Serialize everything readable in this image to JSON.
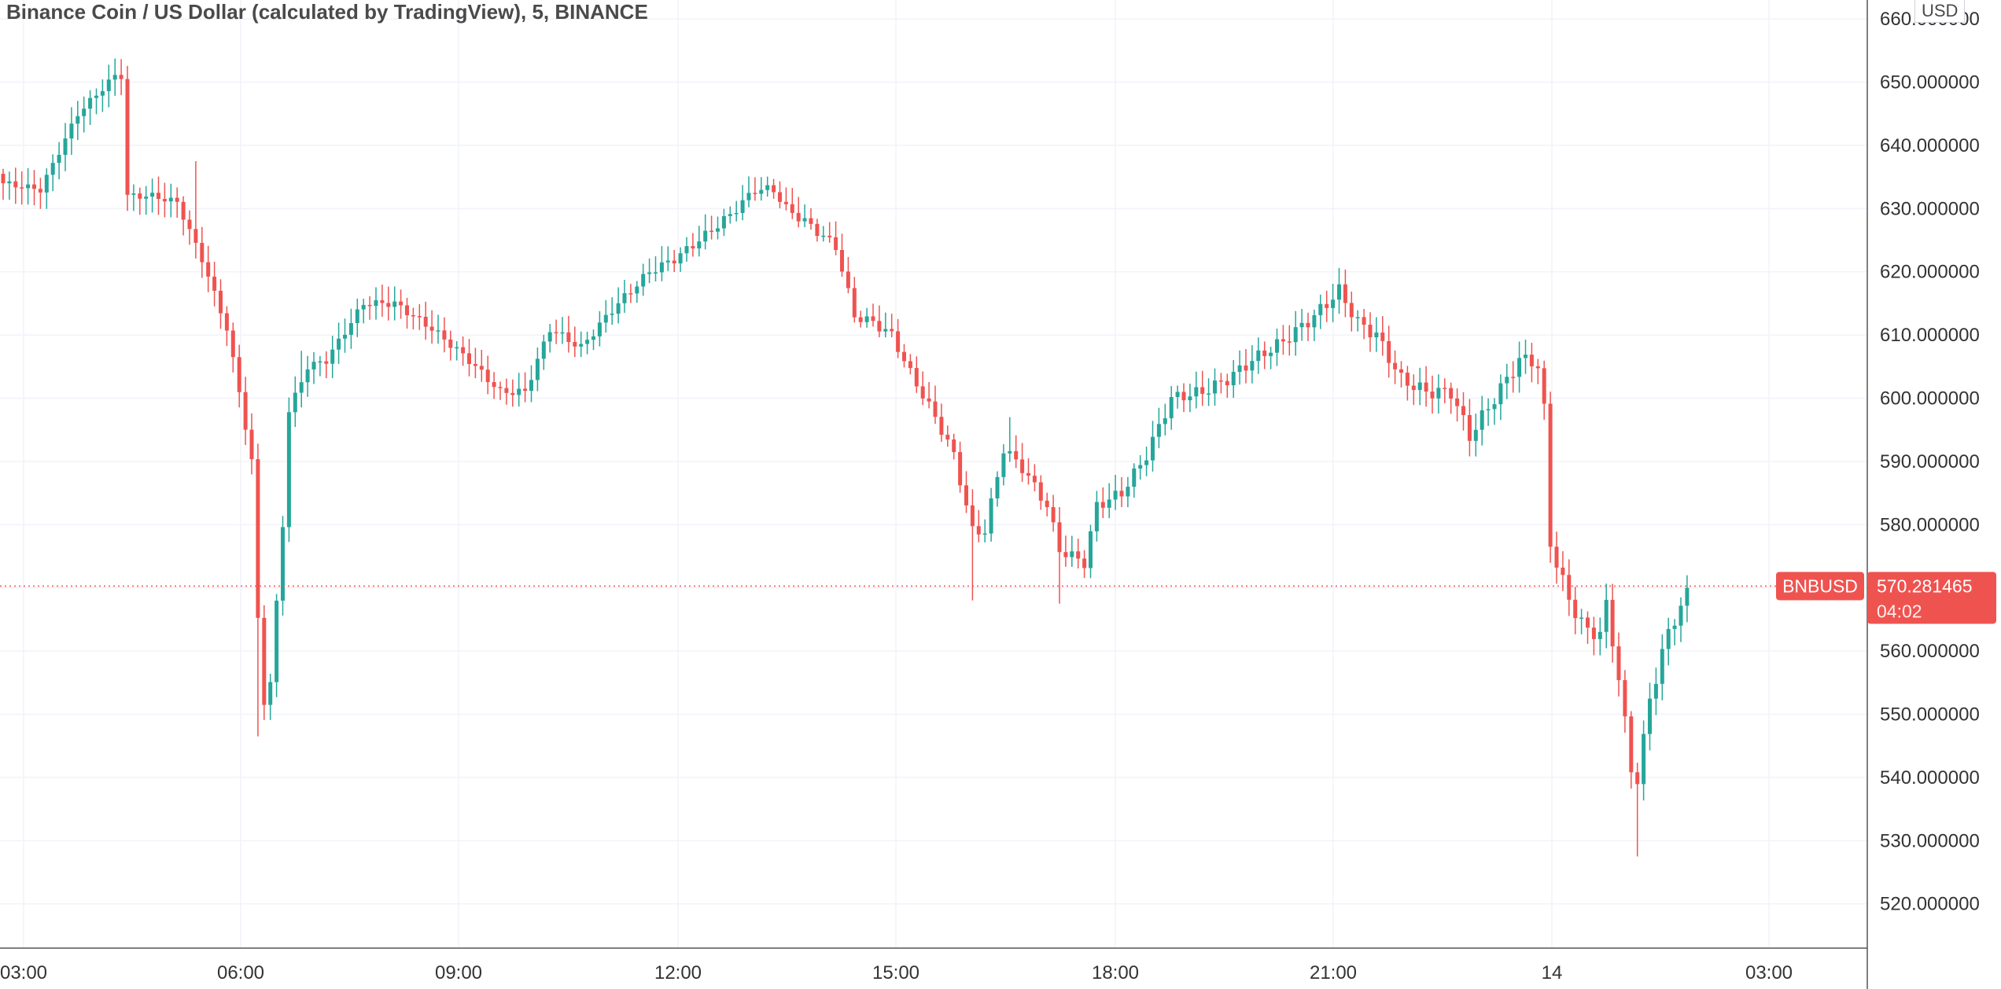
{
  "header": {
    "title": "Binance Coin / US Dollar (calculated by TradingView), 5, BINANCE",
    "currency": "USD"
  },
  "colors": {
    "up": "#26a69a",
    "down": "#ef5350",
    "grid": "#f0f3fa",
    "axis_line": "#555555",
    "last_price_line": "#ef5350"
  },
  "chart_data": {
    "type": "candlestick",
    "symbol": "BNBUSD",
    "last_price": "570.281465",
    "countdown": "04:02",
    "y_range": [
      513,
      663
    ],
    "y_ticks": [
      "660.000000",
      "650.000000",
      "640.000000",
      "630.000000",
      "620.000000",
      "610.000000",
      "600.000000",
      "590.000000",
      "580.000000",
      "570.000000",
      "560.000000",
      "550.000000",
      "540.000000",
      "530.000000",
      "520.000000"
    ],
    "y_tick_values": [
      660,
      650,
      640,
      630,
      620,
      610,
      600,
      590,
      580,
      570,
      560,
      550,
      540,
      530,
      520
    ],
    "x_ticks": [
      "03:00",
      "06:00",
      "09:00",
      "12:00",
      "15:00",
      "18:00",
      "21:00",
      "14",
      "03:00"
    ],
    "grid": true,
    "anchors": [
      [
        0,
        634
      ],
      [
        6,
        633
      ],
      [
        12,
        645
      ],
      [
        18,
        651
      ],
      [
        19,
        651
      ],
      [
        20,
        632
      ],
      [
        24,
        632
      ],
      [
        28,
        631
      ],
      [
        32,
        622
      ],
      [
        36,
        611
      ],
      [
        38,
        601
      ],
      [
        40,
        590
      ],
      [
        41,
        565
      ],
      [
        42,
        552
      ],
      [
        43,
        555
      ],
      [
        45,
        580
      ],
      [
        46,
        598
      ],
      [
        49,
        605
      ],
      [
        52,
        606
      ],
      [
        58,
        615
      ],
      [
        63,
        615
      ],
      [
        69,
        611
      ],
      [
        75,
        606
      ],
      [
        80,
        601
      ],
      [
        84,
        601
      ],
      [
        88,
        611
      ],
      [
        93,
        608
      ],
      [
        98,
        614
      ],
      [
        104,
        620
      ],
      [
        108,
        622
      ],
      [
        112,
        625
      ],
      [
        117,
        629
      ],
      [
        121,
        633
      ],
      [
        124,
        633
      ],
      [
        126,
        630
      ],
      [
        129,
        628
      ],
      [
        134,
        624
      ],
      [
        137,
        613
      ],
      [
        140,
        612
      ],
      [
        143,
        610
      ],
      [
        146,
        604
      ],
      [
        150,
        597
      ],
      [
        153,
        591
      ],
      [
        156,
        579
      ],
      [
        158,
        579
      ],
      [
        161,
        592
      ],
      [
        164,
        589
      ],
      [
        168,
        583
      ],
      [
        170,
        576
      ],
      [
        172,
        575
      ],
      [
        174,
        574
      ],
      [
        176,
        583
      ],
      [
        180,
        585
      ],
      [
        184,
        591
      ],
      [
        188,
        600
      ],
      [
        193,
        601
      ],
      [
        197,
        603
      ],
      [
        201,
        606
      ],
      [
        206,
        609
      ],
      [
        211,
        613
      ],
      [
        215,
        617
      ],
      [
        218,
        612
      ],
      [
        221,
        610
      ],
      [
        225,
        603
      ],
      [
        229,
        601
      ],
      [
        233,
        601
      ],
      [
        236,
        594
      ],
      [
        240,
        600
      ],
      [
        244,
        606
      ],
      [
        246,
        606
      ],
      [
        247,
        605
      ],
      [
        248,
        598
      ],
      [
        249,
        577
      ],
      [
        252,
        568
      ],
      [
        255,
        563
      ],
      [
        257,
        563
      ],
      [
        258,
        567
      ],
      [
        260,
        556
      ],
      [
        262,
        541
      ],
      [
        263,
        540
      ],
      [
        265,
        552
      ],
      [
        267,
        560
      ],
      [
        269,
        565
      ],
      [
        271,
        570
      ]
    ],
    "spikes": [
      {
        "i": 41,
        "low": 546.5
      },
      {
        "i": 42,
        "low": 558.5
      },
      {
        "i": 33,
        "low": 621
      },
      {
        "i": 156,
        "low": 568
      },
      {
        "i": 170,
        "low": 567.5
      },
      {
        "i": 263,
        "low": 527.5
      },
      {
        "i": 48,
        "high": 607.5
      },
      {
        "i": 162,
        "high": 597
      },
      {
        "i": 31,
        "high": 637.5
      }
    ]
  }
}
